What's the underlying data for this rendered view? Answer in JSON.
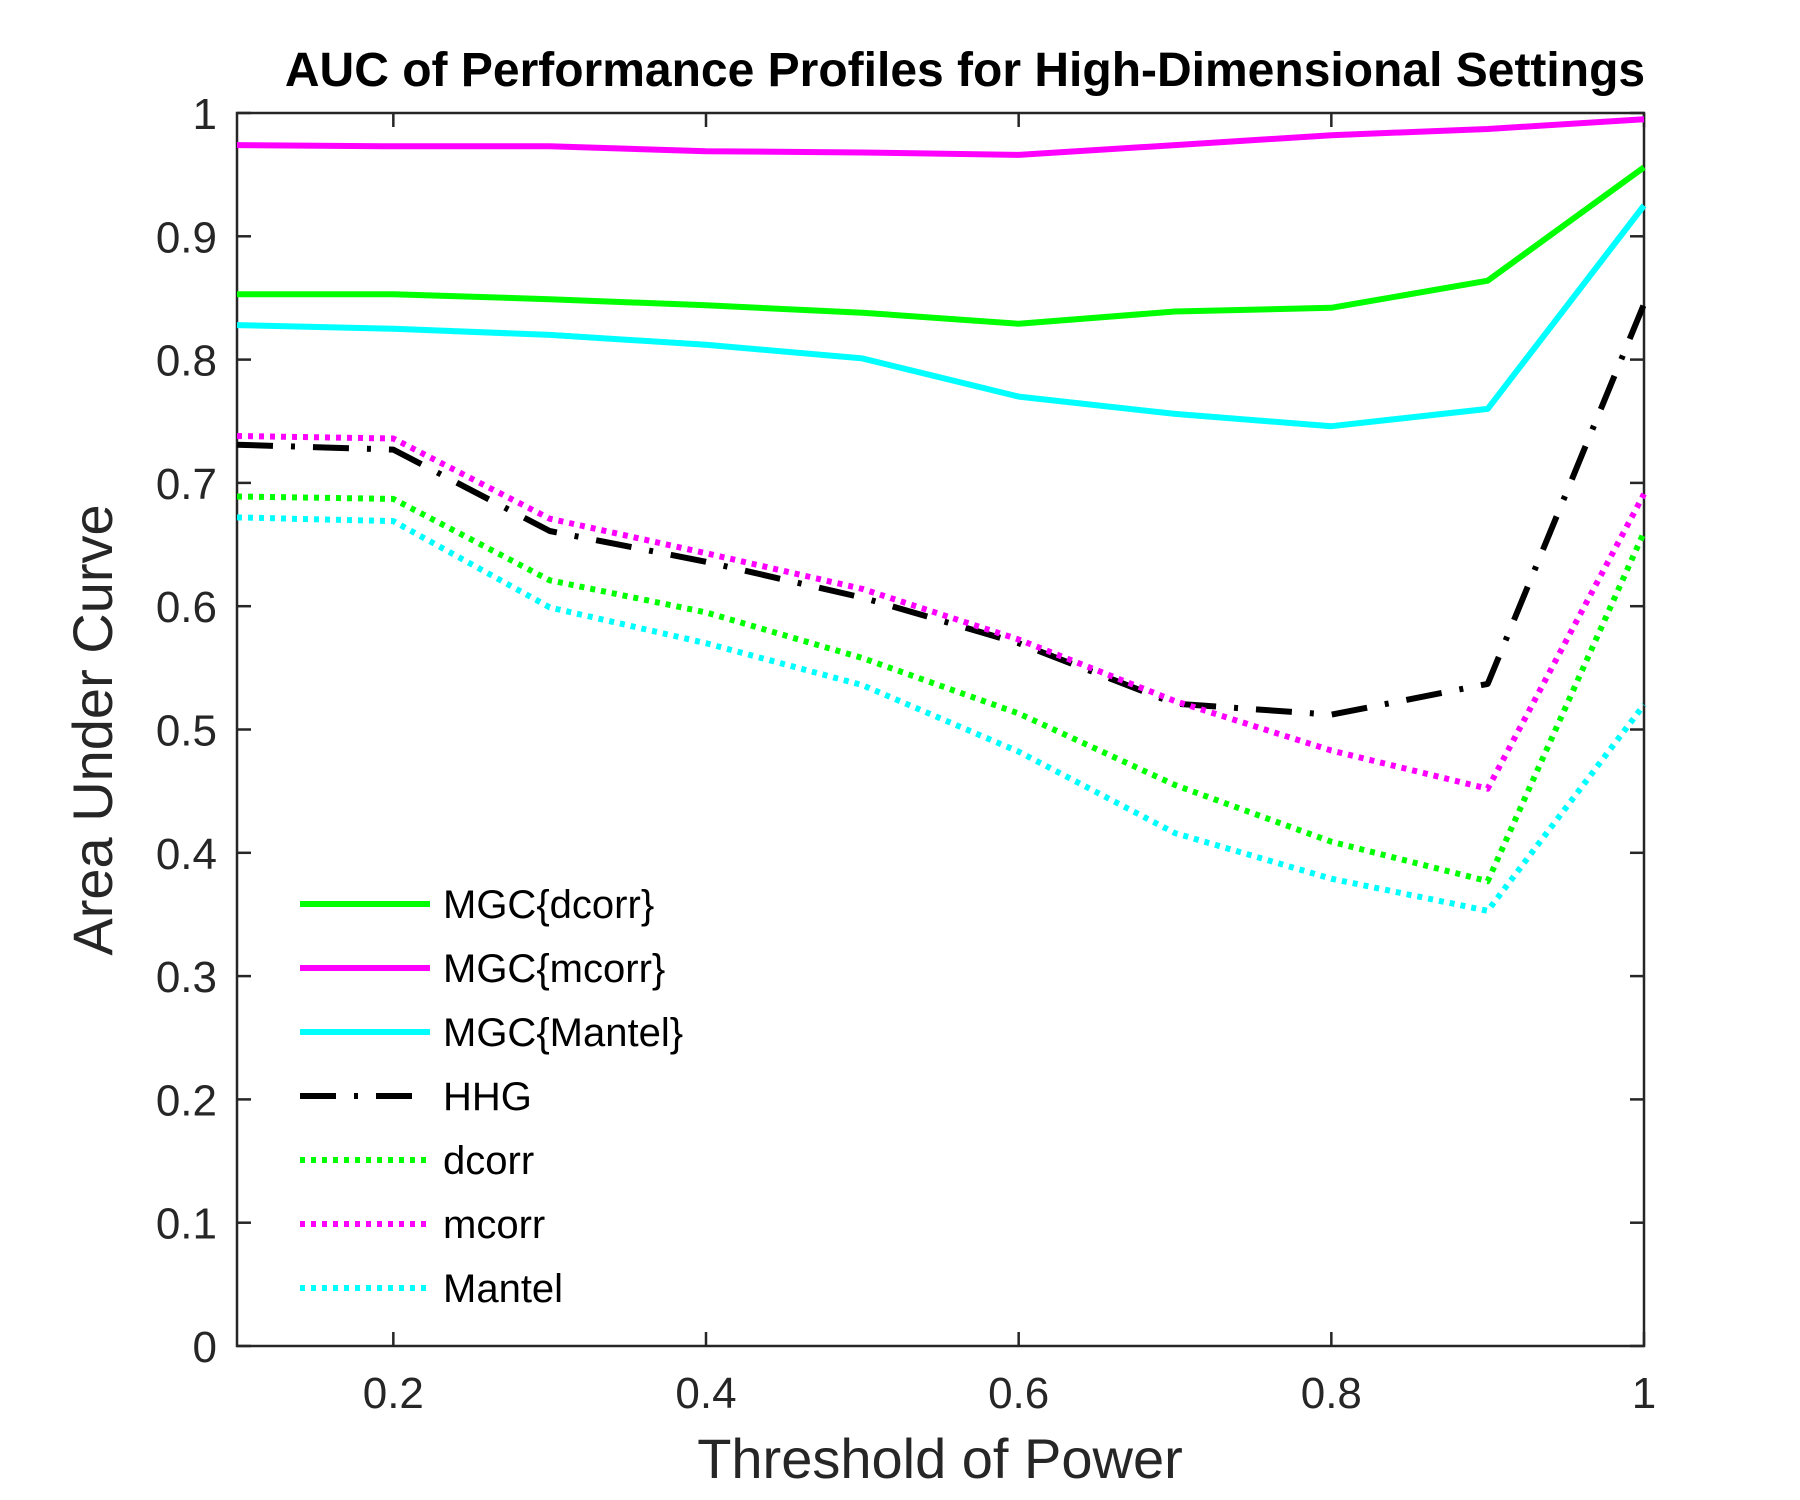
{
  "chart_data": {
    "type": "line",
    "title": "AUC of Performance Profiles for High-Dimensional Settings",
    "xlabel": "Threshold of Power",
    "ylabel": "Area Under Curve",
    "xlim": [
      0.1,
      1
    ],
    "ylim": [
      0,
      1
    ],
    "xticks": [
      0.2,
      0.4,
      0.6,
      0.8,
      1
    ],
    "xtick_labels": [
      "0.2",
      "0.4",
      "0.6",
      "0.8",
      "1"
    ],
    "yticks": [
      0,
      0.1,
      0.2,
      0.3,
      0.4,
      0.5,
      0.6,
      0.7,
      0.8,
      0.9,
      1
    ],
    "ytick_labels": [
      "0",
      "0.1",
      "0.2",
      "0.3",
      "0.4",
      "0.5",
      "0.6",
      "0.7",
      "0.8",
      "0.9",
      "1"
    ],
    "grid": false,
    "legend_position": "bottom-left",
    "x": [
      0.1,
      0.2,
      0.3,
      0.4,
      0.5,
      0.6,
      0.7,
      0.8,
      0.9,
      1.0
    ],
    "series": [
      {
        "name": "MGC{dcorr}",
        "color": "#00ff00",
        "style": "solid",
        "values": [
          0.853,
          0.853,
          0.849,
          0.844,
          0.838,
          0.829,
          0.839,
          0.842,
          0.864,
          0.956
        ]
      },
      {
        "name": "MGC{mcorr}",
        "color": "#ff00ff",
        "style": "solid",
        "values": [
          0.974,
          0.973,
          0.973,
          0.969,
          0.968,
          0.966,
          0.974,
          0.982,
          0.987,
          0.995
        ]
      },
      {
        "name": "MGC{Mantel}",
        "color": "#00ffff",
        "style": "solid",
        "values": [
          0.828,
          0.825,
          0.82,
          0.812,
          0.801,
          0.77,
          0.756,
          0.746,
          0.76,
          0.925
        ]
      },
      {
        "name": "HHG",
        "color": "#000000",
        "style": "dashdot",
        "values": [
          0.731,
          0.727,
          0.661,
          0.636,
          0.607,
          0.57,
          0.521,
          0.512,
          0.537,
          0.845
        ]
      },
      {
        "name": "dcorr",
        "color": "#00ff00",
        "style": "dotted",
        "values": [
          0.689,
          0.687,
          0.621,
          0.595,
          0.558,
          0.513,
          0.455,
          0.409,
          0.377,
          0.66
        ]
      },
      {
        "name": "mcorr",
        "color": "#ff00ff",
        "style": "dotted",
        "values": [
          0.738,
          0.736,
          0.671,
          0.643,
          0.614,
          0.573,
          0.523,
          0.483,
          0.452,
          0.691
        ]
      },
      {
        "name": "Mantel",
        "color": "#00ffff",
        "style": "dotted",
        "values": [
          0.672,
          0.669,
          0.599,
          0.57,
          0.536,
          0.482,
          0.416,
          0.379,
          0.353,
          0.52
        ]
      }
    ]
  }
}
